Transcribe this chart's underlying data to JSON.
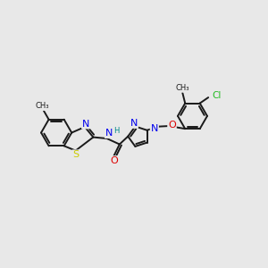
{
  "background_color": "#e8e8e8",
  "bond_color": "#1a1a1a",
  "bond_width": 1.4,
  "atom_colors": {
    "N": "#0000ee",
    "S": "#cccc00",
    "O": "#dd0000",
    "Cl": "#22bb22",
    "H": "#008888",
    "C": "#1a1a1a"
  },
  "figsize": [
    3.0,
    3.0
  ],
  "dpi": 100
}
